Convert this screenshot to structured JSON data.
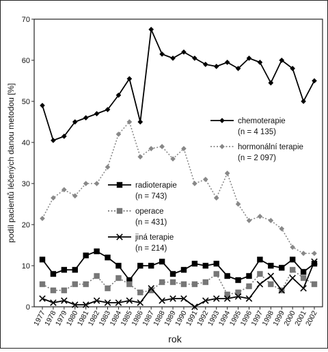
{
  "chart_data": {
    "type": "line",
    "xlabel": "rok",
    "ylabel": "podíl pacientů léčených danou metodou [%]",
    "ylim": [
      0,
      70
    ],
    "yticks": [
      0,
      10,
      20,
      30,
      40,
      50,
      60,
      70
    ],
    "x": [
      "1977",
      "1978",
      "1979",
      "1980",
      "1981",
      "1982",
      "1983",
      "1984",
      "1985",
      "1986",
      "1987",
      "1988",
      "1989",
      "1990",
      "1991",
      "1992",
      "1993",
      "1994",
      "1995",
      "1996",
      "1997",
      "1998",
      "1999",
      "2000",
      "2001",
      "2002"
    ],
    "grid": false,
    "series": [
      {
        "name": "chemoterapie",
        "n_label": "(n = 4 135)",
        "color": "#000000",
        "dash": "solid",
        "marker": "diamond",
        "values": [
          49,
          40.5,
          41.5,
          45,
          46,
          47,
          48,
          51.5,
          55.5,
          45,
          67.5,
          61.5,
          60.5,
          62,
          60.5,
          59,
          58.5,
          59.5,
          58,
          60.5,
          59.5,
          54.5,
          60,
          58,
          50,
          55
        ]
      },
      {
        "name": "hormonální terapie",
        "n_label": "(n = 2 097)",
        "color": "#888888",
        "dash": "dotted",
        "marker": "diamond",
        "values": [
          21.5,
          26.5,
          28.5,
          27,
          30,
          30,
          34,
          42,
          45,
          36.5,
          38.5,
          39,
          36,
          38.5,
          30,
          31,
          26.5,
          32.5,
          25,
          21,
          22,
          21,
          19,
          14.5,
          13,
          13
        ]
      },
      {
        "name": "radioterapie",
        "n_label": "(n = 743)",
        "color": "#000000",
        "dash": "solid",
        "marker": "square",
        "values": [
          11.5,
          8,
          9,
          9,
          12.5,
          13.5,
          12,
          10,
          6.5,
          10,
          10,
          11,
          8,
          9,
          10.5,
          10,
          10.5,
          7.5,
          6.5,
          7.5,
          11.5,
          10,
          9.5,
          11.5,
          8.5,
          10.5
        ]
      },
      {
        "name": "operace",
        "n_label": "(n = 431)",
        "color": "#777777",
        "dash": "dotted",
        "marker": "square",
        "values": [
          5.5,
          4,
          4,
          5.5,
          5.5,
          7.5,
          4.5,
          7,
          5.5,
          3.5,
          4,
          6,
          6,
          5.5,
          5.5,
          6,
          8,
          3,
          3.5,
          5,
          8,
          5.5,
          4,
          9,
          7,
          5.5
        ]
      },
      {
        "name": "jiná terapie",
        "n_label": "(n = 214)",
        "color": "#000000",
        "dash": "solid",
        "marker": "x",
        "values": [
          2,
          1,
          1.5,
          0.5,
          0.5,
          1.5,
          1,
          1,
          1.5,
          1,
          4.5,
          1.5,
          2,
          2,
          0,
          1.5,
          2,
          2,
          2.5,
          2,
          5.5,
          7.5,
          4,
          7,
          4.5,
          11
        ]
      }
    ]
  }
}
